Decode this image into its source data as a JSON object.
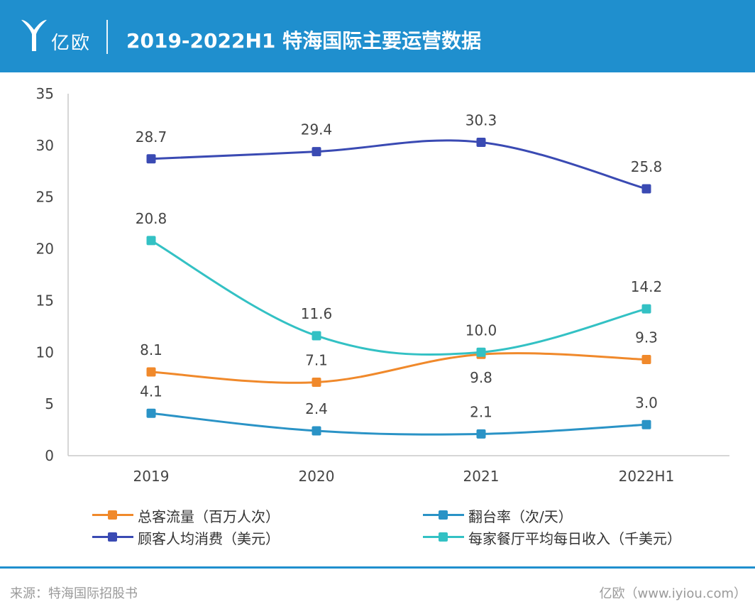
{
  "header": {
    "logo_text": "亿欧",
    "title": "2019-2022H1 特海国际主要运营数据",
    "bg_color": "#1f8fce"
  },
  "chart_data": {
    "type": "line",
    "categories": [
      "2019",
      "2020",
      "2021",
      "2022H1"
    ],
    "ylim": [
      0,
      35
    ],
    "yticks": [
      0,
      5,
      10,
      15,
      20,
      25,
      30,
      35
    ],
    "grid": false,
    "legend_position": "bottom",
    "series": [
      {
        "name": "总客流量（百万人次）",
        "color": "#f0892b",
        "values": [
          8.1,
          7.1,
          9.8,
          9.3
        ],
        "labels": [
          "8.1",
          "7.1",
          "9.8",
          "9.3"
        ],
        "label_side": [
          "above",
          "above",
          "below",
          "above"
        ]
      },
      {
        "name": "翻台率（次/天）",
        "color": "#2a93c6",
        "values": [
          4.1,
          2.4,
          2.1,
          3.0
        ],
        "labels": [
          "4.1",
          "2.4",
          "2.1",
          "3.0"
        ],
        "label_side": [
          "above",
          "above",
          "above",
          "above"
        ]
      },
      {
        "name": "顾客人均消费（美元）",
        "color": "#3a4ab3",
        "values": [
          28.7,
          29.4,
          30.3,
          25.8
        ],
        "labels": [
          "28.7",
          "29.4",
          "30.3",
          "25.8"
        ],
        "label_side": [
          "above",
          "above",
          "above",
          "above"
        ]
      },
      {
        "name": "每家餐厅平均每日收入（千美元）",
        "color": "#33c1c4",
        "values": [
          20.8,
          11.6,
          10.0,
          14.2
        ],
        "labels": [
          "20.8",
          "11.6",
          "10.0",
          "14.2"
        ],
        "label_side": [
          "above",
          "above",
          "above",
          "above"
        ]
      }
    ]
  },
  "footer": {
    "source": "来源：特海国际招股书",
    "credit": "亿欧（www.iyiou.com）"
  }
}
